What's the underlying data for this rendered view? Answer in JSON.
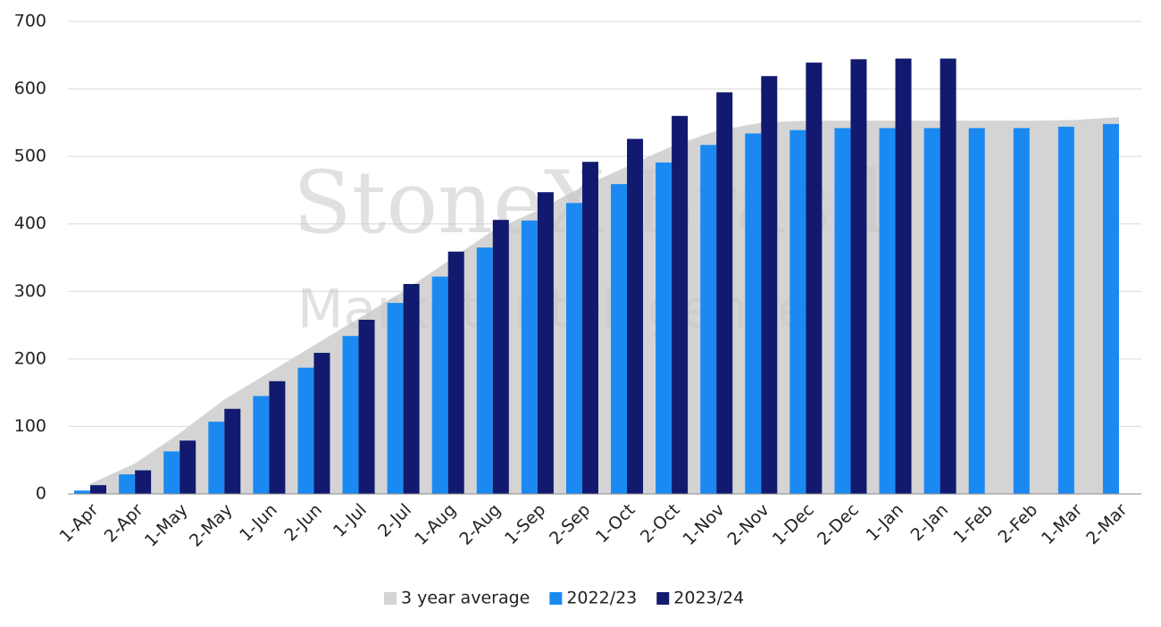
{
  "chart_data": {
    "type": "bar",
    "watermark": [
      "StoneX Brasil",
      "Market Intelligence"
    ],
    "categories": [
      "1-Apr",
      "2-Apr",
      "1-May",
      "2-May",
      "1-Jun",
      "2-Jun",
      "1-Jul",
      "2-Jul",
      "1-Aug",
      "2-Aug",
      "1-Sep",
      "2-Sep",
      "1-Oct",
      "2-Oct",
      "1-Nov",
      "2-Nov",
      "1-Dec",
      "2-Dec",
      "1-Jan",
      "2-Jan",
      "1-Feb",
      "2-Feb",
      "1-Mar",
      "2-Mar"
    ],
    "series": [
      {
        "name": "3 year average",
        "type": "area",
        "color": "#d4d4d4",
        "values": [
          15,
          45,
          90,
          140,
          180,
          220,
          260,
          300,
          345,
          390,
          420,
          455,
          485,
          515,
          538,
          550,
          553,
          553,
          553,
          553,
          553,
          553,
          554,
          558
        ]
      },
      {
        "name": "2022/23",
        "type": "bar",
        "color": "#1a8af2",
        "values": [
          5,
          29,
          63,
          107,
          145,
          187,
          234,
          283,
          322,
          365,
          405,
          431,
          459,
          491,
          517,
          534,
          539,
          542,
          542,
          542,
          542,
          542,
          544,
          548
        ]
      },
      {
        "name": "2023/24",
        "type": "bar",
        "color": "#111a6e",
        "values": [
          13,
          35,
          79,
          126,
          167,
          209,
          258,
          311,
          359,
          406,
          447,
          492,
          526,
          560,
          595,
          619,
          639,
          644,
          645,
          645,
          null,
          null,
          null,
          null
        ]
      }
    ],
    "ylim": [
      0,
      700
    ],
    "yticks": [
      0,
      100,
      200,
      300,
      400,
      500,
      600,
      700
    ],
    "grid": true,
    "legend": "bottom"
  }
}
